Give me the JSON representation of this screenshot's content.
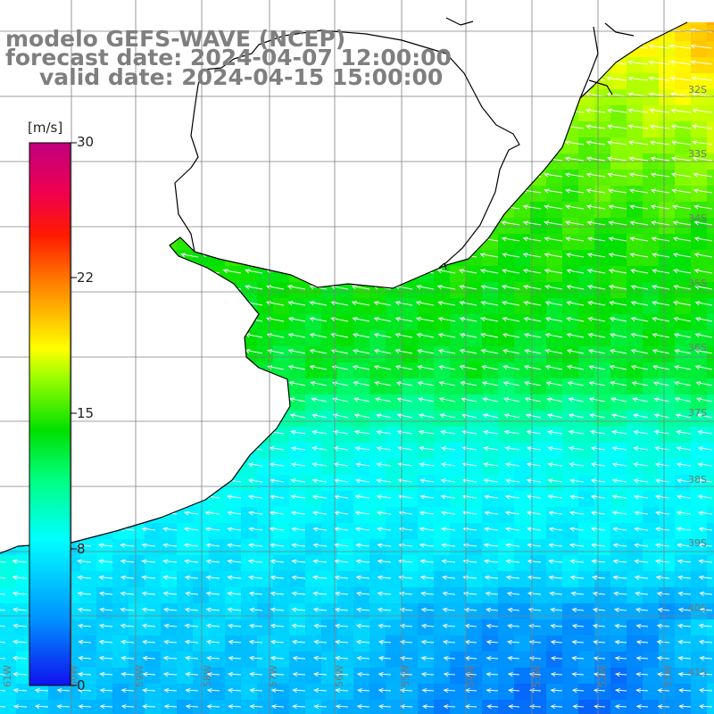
{
  "title": {
    "model": "modelo GEFS-WAVE (NCEP)",
    "forecast": "forecast date: 2024-04-07 12:00:00",
    "valid": "valid date: 2024-04-15 15:00:00"
  },
  "colorbar": {
    "units": "[m/s]",
    "ticks": [
      "30",
      "22",
      "15",
      "8",
      "0"
    ],
    "tick_values": [
      30,
      22,
      15,
      8,
      0
    ],
    "range": [
      0,
      30
    ],
    "colors": [
      "#1010ee",
      "#0090ff",
      "#00e8ff",
      "#00ff90",
      "#00e000",
      "#8fff00",
      "#ffff00",
      "#ff9000",
      "#ff2000",
      "#ee0050",
      "#cc0088"
    ]
  },
  "grid_labels": {
    "lat": [
      "32S",
      "33S",
      "34S",
      "35S",
      "36S",
      "37S",
      "38S",
      "39S",
      "40S",
      "41S"
    ],
    "lon": [
      "61W",
      "60W",
      "59W",
      "58W",
      "57W",
      "56W",
      "55W",
      "54W",
      "53W",
      "52W",
      "51W"
    ]
  },
  "colors": {
    "title": "#7f7f7f",
    "coastline": "#000000",
    "grid": "#808080",
    "vectors": "#ffffff",
    "land": "#ffffff"
  }
}
